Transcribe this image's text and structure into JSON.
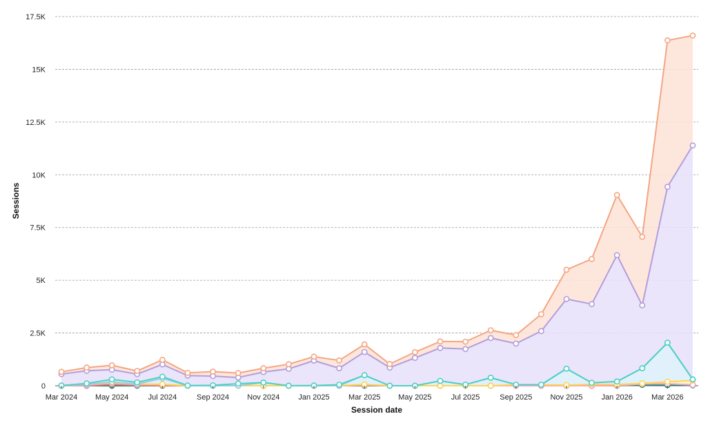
{
  "chart_data": {
    "type": "area",
    "xlabel": "Session date",
    "ylabel": "Sessions",
    "ylim": [
      0,
      17500
    ],
    "y_ticks": [
      {
        "value": 0,
        "label": "0"
      },
      {
        "value": 2500,
        "label": "2.5K"
      },
      {
        "value": 5000,
        "label": "5K"
      },
      {
        "value": 7500,
        "label": "7.5K"
      },
      {
        "value": 10000,
        "label": "10K"
      },
      {
        "value": 12500,
        "label": "12.5K"
      },
      {
        "value": 15000,
        "label": "15K"
      },
      {
        "value": 17500,
        "label": "17.5K"
      }
    ],
    "x": [
      "2024-03",
      "2024-04",
      "2024-05",
      "2024-06",
      "2024-07",
      "2024-08",
      "2024-09",
      "2024-10",
      "2024-11",
      "2024-12",
      "2025-01",
      "2025-02",
      "2025-03",
      "2025-04",
      "2025-05",
      "2025-06",
      "2025-07",
      "2025-08",
      "2025-09",
      "2025-10",
      "2025-11",
      "2025-12",
      "2026-01",
      "2026-02",
      "2026-03",
      "2026-04"
    ],
    "x_tick_labels": [
      "Mar 2024",
      "May 2024",
      "Jul 2024",
      "Sep 2024",
      "Nov 2024",
      "Jan 2025",
      "Mar 2025",
      "May 2025",
      "Jul 2025",
      "Sep 2025",
      "Nov 2025",
      "Jan 2026",
      "Mar 2026"
    ],
    "grid": true,
    "legend": "none",
    "stacked": true,
    "series": [
      {
        "color": "#00897b",
        "fill": "#b2dfdb",
        "values": [
          0,
          0,
          0,
          0,
          0,
          0,
          0,
          0,
          0,
          0,
          0,
          0,
          0,
          0,
          0,
          0,
          0,
          0,
          0,
          0,
          0,
          0,
          0,
          40,
          30,
          20
        ]
      },
      {
        "color": "#e57373",
        "fill": "#ffcdd2",
        "values": [
          0,
          0,
          50,
          20,
          10,
          0,
          0,
          0,
          0,
          0,
          0,
          0,
          20,
          0,
          0,
          0,
          0,
          0,
          0,
          0,
          0,
          0,
          10,
          40,
          60,
          20
        ]
      },
      {
        "color": "#f8a5c2",
        "fill": "#fde2ec",
        "values": [
          0,
          20,
          80,
          30,
          30,
          0,
          0,
          0,
          0,
          0,
          0,
          0,
          10,
          0,
          0,
          0,
          0,
          0,
          0,
          0,
          0,
          0,
          0,
          0,
          0,
          0
        ]
      },
      {
        "color": "#ffd54f",
        "fill": "#fff3c4",
        "values": [
          10,
          40,
          20,
          30,
          30,
          0,
          0,
          0,
          0,
          0,
          10,
          0,
          30,
          0,
          0,
          0,
          0,
          0,
          50,
          50,
          30,
          70,
          50,
          30,
          100,
          210
        ]
      },
      {
        "color": "#9ecae1",
        "fill": "#dceefb",
        "values": [
          0,
          0,
          30,
          0,
          280,
          0,
          0,
          0,
          150,
          0,
          0,
          0,
          440,
          0,
          0,
          230,
          50,
          380,
          0,
          0,
          780,
          70,
          140,
          720,
          1850,
          50
        ]
      },
      {
        "color": "#4dd0c4",
        "fill": "#c8f2ee",
        "values": [
          0,
          50,
          120,
          80,
          80,
          10,
          20,
          100,
          0,
          0,
          0,
          50,
          0,
          0,
          0,
          0,
          0,
          0,
          0,
          0,
          0,
          0,
          0,
          0,
          0,
          0
        ]
      },
      {
        "color": "#b39ddb",
        "fill": "#e6e0fa",
        "values": [
          540,
          600,
          460,
          390,
          580,
          470,
          440,
          290,
          500,
          800,
          1180,
          780,
          1100,
          860,
          1320,
          1560,
          1690,
          1880,
          1950,
          2540,
          3300,
          3730,
          5990,
          2980,
          7390,
          11090
        ]
      },
      {
        "color": "#f4a582",
        "fill": "#fde3d6",
        "values": [
          110,
          150,
          210,
          150,
          220,
          130,
          210,
          210,
          180,
          220,
          190,
          370,
          360,
          170,
          270,
          310,
          350,
          370,
          400,
          800,
          1390,
          2140,
          2850,
          3250,
          6940,
          5210
        ]
      }
    ]
  }
}
